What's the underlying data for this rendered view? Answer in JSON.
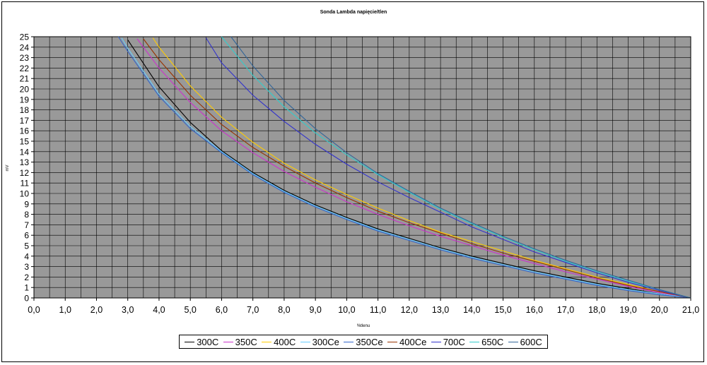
{
  "chart_data": {
    "type": "line",
    "title": "Sonda Lambda napięcie/tlen",
    "xlabel": "%tlenu",
    "ylabel": "mV",
    "xlim": [
      0,
      21
    ],
    "ylim": [
      0,
      25
    ],
    "x_ticks": [
      "0,0",
      "1,0",
      "2,0",
      "3,0",
      "4,0",
      "5,0",
      "6,0",
      "7,0",
      "8,0",
      "9,0",
      "10,0",
      "11,0",
      "12,0",
      "13,0",
      "14,0",
      "15,0",
      "16,0",
      "17,0",
      "18,0",
      "19,0",
      "20,0",
      "21,0"
    ],
    "y_ticks": [
      "0",
      "1",
      "2",
      "3",
      "4",
      "5",
      "6",
      "7",
      "8",
      "9",
      "10",
      "11",
      "12",
      "13",
      "14",
      "15",
      "16",
      "17",
      "18",
      "19",
      "20",
      "21",
      "22",
      "23",
      "24",
      "25"
    ],
    "grid": true,
    "plot_background": "#999999",
    "legend_position": "bottom",
    "series": [
      {
        "name": "300C",
        "color": "#000000",
        "x": [
          3.0,
          4.0,
          5.0,
          6.0,
          7.0,
          8.0,
          9.0,
          10.0,
          11.0,
          12.0,
          13.0,
          14.0,
          15.0,
          16.0,
          17.0,
          18.0,
          19.0,
          20.0,
          21.0
        ],
        "y": [
          24.7,
          20.2,
          16.8,
          14.1,
          12.0,
          10.3,
          8.9,
          7.7,
          6.6,
          5.7,
          4.8,
          4.0,
          3.3,
          2.6,
          2.0,
          1.4,
          0.9,
          0.4,
          0.0
        ]
      },
      {
        "name": "350C",
        "color": "#cc33cc",
        "x": [
          3.3,
          4.0,
          5.0,
          6.0,
          7.0,
          8.0,
          9.0,
          10.0,
          11.0,
          12.0,
          13.0,
          14.0,
          15.0,
          16.0,
          17.0,
          18.0,
          19.0,
          20.0,
          21.0
        ],
        "y": [
          24.8,
          22.0,
          18.7,
          16.0,
          13.9,
          12.1,
          10.6,
          9.2,
          8.0,
          6.9,
          5.9,
          5.0,
          4.1,
          3.3,
          2.5,
          1.8,
          1.1,
          0.5,
          0.0
        ]
      },
      {
        "name": "400C",
        "color": "#ffcc00",
        "x": [
          3.8,
          4.0,
          5.0,
          6.0,
          7.0,
          8.0,
          9.0,
          10.0,
          11.0,
          12.0,
          13.0,
          14.0,
          15.0,
          16.0,
          17.0,
          18.0,
          19.0,
          20.0,
          21.0
        ],
        "y": [
          24.9,
          24.0,
          20.3,
          17.3,
          14.9,
          12.9,
          11.3,
          9.9,
          8.6,
          7.4,
          6.3,
          5.4,
          4.5,
          3.6,
          2.8,
          2.0,
          1.3,
          0.6,
          0.0
        ]
      },
      {
        "name": "300Ce",
        "color": "#66ccff",
        "x": [
          2.8,
          3.0,
          4.0,
          5.0,
          6.0,
          7.0,
          8.0,
          9.0,
          10.0,
          11.0,
          12.0,
          13.0,
          14.0,
          15.0,
          16.0,
          17.0,
          18.0,
          19.0,
          20.0,
          21.0
        ],
        "y": [
          24.9,
          23.9,
          19.5,
          16.4,
          14.0,
          11.9,
          10.2,
          8.8,
          7.6,
          6.5,
          5.6,
          4.7,
          3.9,
          3.2,
          2.5,
          1.9,
          1.3,
          0.8,
          0.4,
          0.0
        ]
      },
      {
        "name": "350Ce",
        "color": "#3366cc",
        "x": [
          2.7,
          3.0,
          4.0,
          5.0,
          6.0,
          7.0,
          8.0,
          9.0,
          10.0,
          11.0,
          12.0,
          13.0,
          14.0,
          15.0,
          16.0,
          17.0,
          18.0,
          19.0,
          20.0,
          21.0
        ],
        "y": [
          25.0,
          23.6,
          19.3,
          16.2,
          13.9,
          11.8,
          10.1,
          8.7,
          7.5,
          6.4,
          5.5,
          4.6,
          3.8,
          3.1,
          2.4,
          1.8,
          1.2,
          0.7,
          0.3,
          0.0
        ]
      },
      {
        "name": "400Ce",
        "color": "#993300",
        "x": [
          3.5,
          4.0,
          5.0,
          6.0,
          7.0,
          8.0,
          9.0,
          10.0,
          11.0,
          12.0,
          13.0,
          14.0,
          15.0,
          16.0,
          17.0,
          18.0,
          19.0,
          20.0,
          21.0
        ],
        "y": [
          24.8,
          22.8,
          19.4,
          16.6,
          14.4,
          12.6,
          11.0,
          9.6,
          8.3,
          7.2,
          6.2,
          5.2,
          4.3,
          3.5,
          2.7,
          1.9,
          1.2,
          0.6,
          0.0
        ]
      },
      {
        "name": "700C",
        "color": "#3333cc",
        "x": [
          5.5,
          6.0,
          7.0,
          8.0,
          9.0,
          10.0,
          11.0,
          12.0,
          13.0,
          14.0,
          15.0,
          16.0,
          17.0,
          18.0,
          19.0,
          20.0,
          21.0
        ],
        "y": [
          24.9,
          22.5,
          19.4,
          16.9,
          14.7,
          12.8,
          11.1,
          9.6,
          8.2,
          6.8,
          5.6,
          4.4,
          3.4,
          2.4,
          1.5,
          0.7,
          0.0
        ]
      },
      {
        "name": "650C",
        "color": "#33cccc",
        "x": [
          6.0,
          7.0,
          8.0,
          9.0,
          10.0,
          11.0,
          12.0,
          13.0,
          14.0,
          15.0,
          16.0,
          17.0,
          18.0,
          19.0,
          20.0,
          21.0
        ],
        "y": [
          25.0,
          21.3,
          18.3,
          15.8,
          13.7,
          11.8,
          10.1,
          8.5,
          7.1,
          5.8,
          4.6,
          3.5,
          2.5,
          1.6,
          0.8,
          0.0
        ]
      },
      {
        "name": "600C",
        "color": "#336699",
        "x": [
          6.3,
          7.0,
          8.0,
          9.0,
          10.0,
          11.0,
          12.0,
          13.0,
          14.0,
          15.0,
          16.0,
          17.0,
          18.0,
          19.0,
          20.0,
          21.0
        ],
        "y": [
          25.0,
          22.2,
          18.9,
          16.2,
          13.9,
          11.9,
          10.2,
          8.6,
          7.2,
          5.9,
          4.7,
          3.6,
          2.6,
          1.7,
          0.8,
          0.0
        ]
      }
    ]
  }
}
